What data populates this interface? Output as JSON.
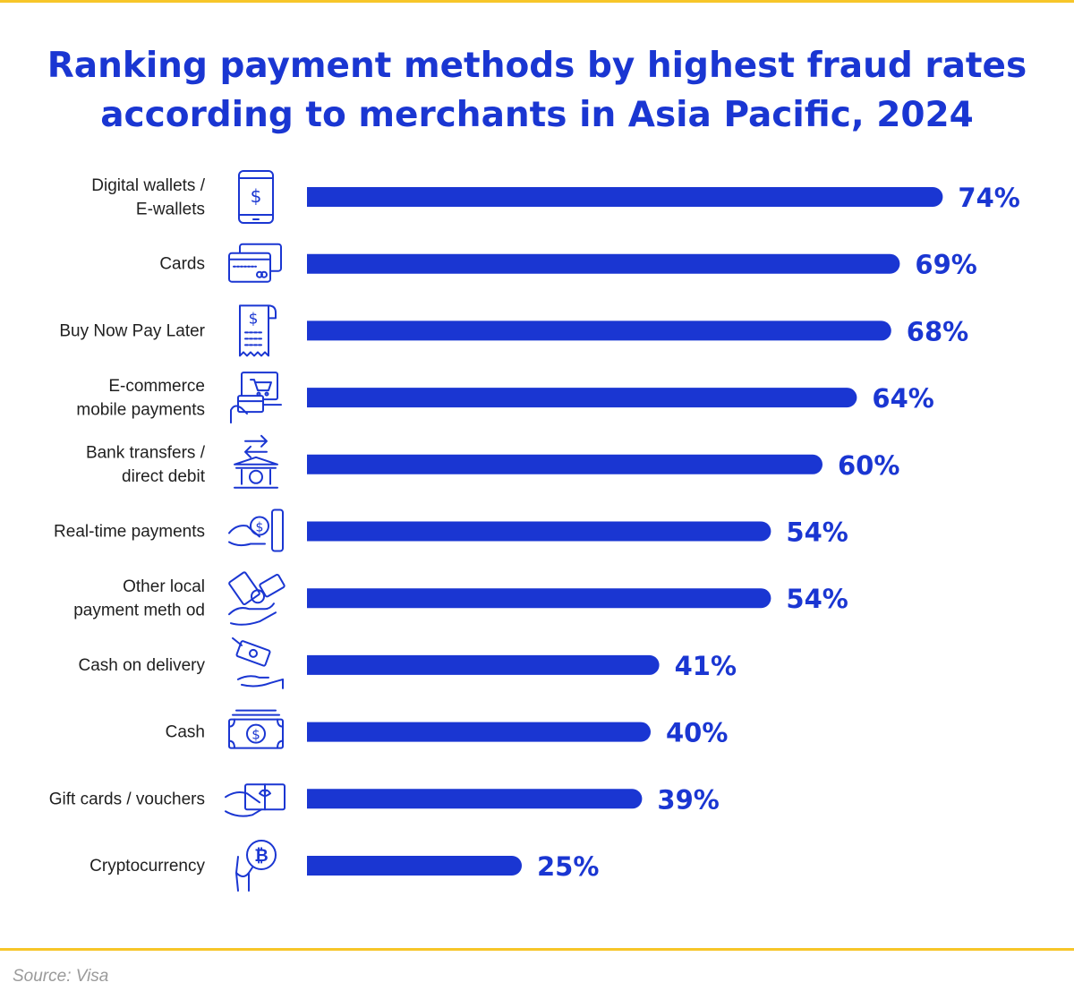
{
  "title_lines": [
    "Ranking payment methods by highest fraud rates",
    "according to merchants in Asia Pacific, 2024"
  ],
  "source": "Source: Visa",
  "colors": {
    "bar": "#1a36d2",
    "text": "#1a36d2",
    "label": "#1f1f1f",
    "rule": "#f7c629",
    "source": "#9a9a9a"
  },
  "chart_data": {
    "type": "bar",
    "orientation": "horizontal",
    "title": "Ranking payment methods by highest fraud rates according to merchants in Asia Pacific, 2024",
    "categories": [
      "Digital wallets / E-wallets",
      "Cards",
      "Buy Now Pay Later",
      "E-commerce mobile payments",
      "Bank transfers / direct debit",
      "Real-time payments",
      "Other local payment meth od",
      "Cash on delivery",
      "Cash",
      "Gift cards / vouchers",
      "Cryptocurrency"
    ],
    "label_lines": [
      [
        "Digital wallets /",
        "E-wallets"
      ],
      [
        "Cards"
      ],
      [
        "Buy Now Pay Later"
      ],
      [
        "E-commerce",
        "mobile payments"
      ],
      [
        "Bank transfers /",
        "direct debit"
      ],
      [
        "Real-time payments"
      ],
      [
        "Other local",
        "payment meth od"
      ],
      [
        "Cash on delivery"
      ],
      [
        "Cash"
      ],
      [
        "Gift cards / vouchers"
      ],
      [
        "Cryptocurrency"
      ]
    ],
    "values": [
      74,
      69,
      68,
      64,
      60,
      54,
      54,
      41,
      40,
      39,
      25
    ],
    "value_labels": [
      "74%",
      "69%",
      "68%",
      "64%",
      "60%",
      "54%",
      "54%",
      "41%",
      "40%",
      "39%",
      "25%"
    ],
    "icons": [
      "smartphone-dollar-icon",
      "credit-cards-icon",
      "receipt-dollar-icon",
      "ecommerce-cart-card-icon",
      "bank-transfer-icon",
      "hand-dollar-phone-icon",
      "hand-cards-coin-icon",
      "cash-handover-icon",
      "banknote-icon",
      "gift-card-hand-icon",
      "bitcoin-hand-icon"
    ],
    "xlim": [
      0,
      100
    ],
    "grid": false,
    "legend": "none"
  }
}
